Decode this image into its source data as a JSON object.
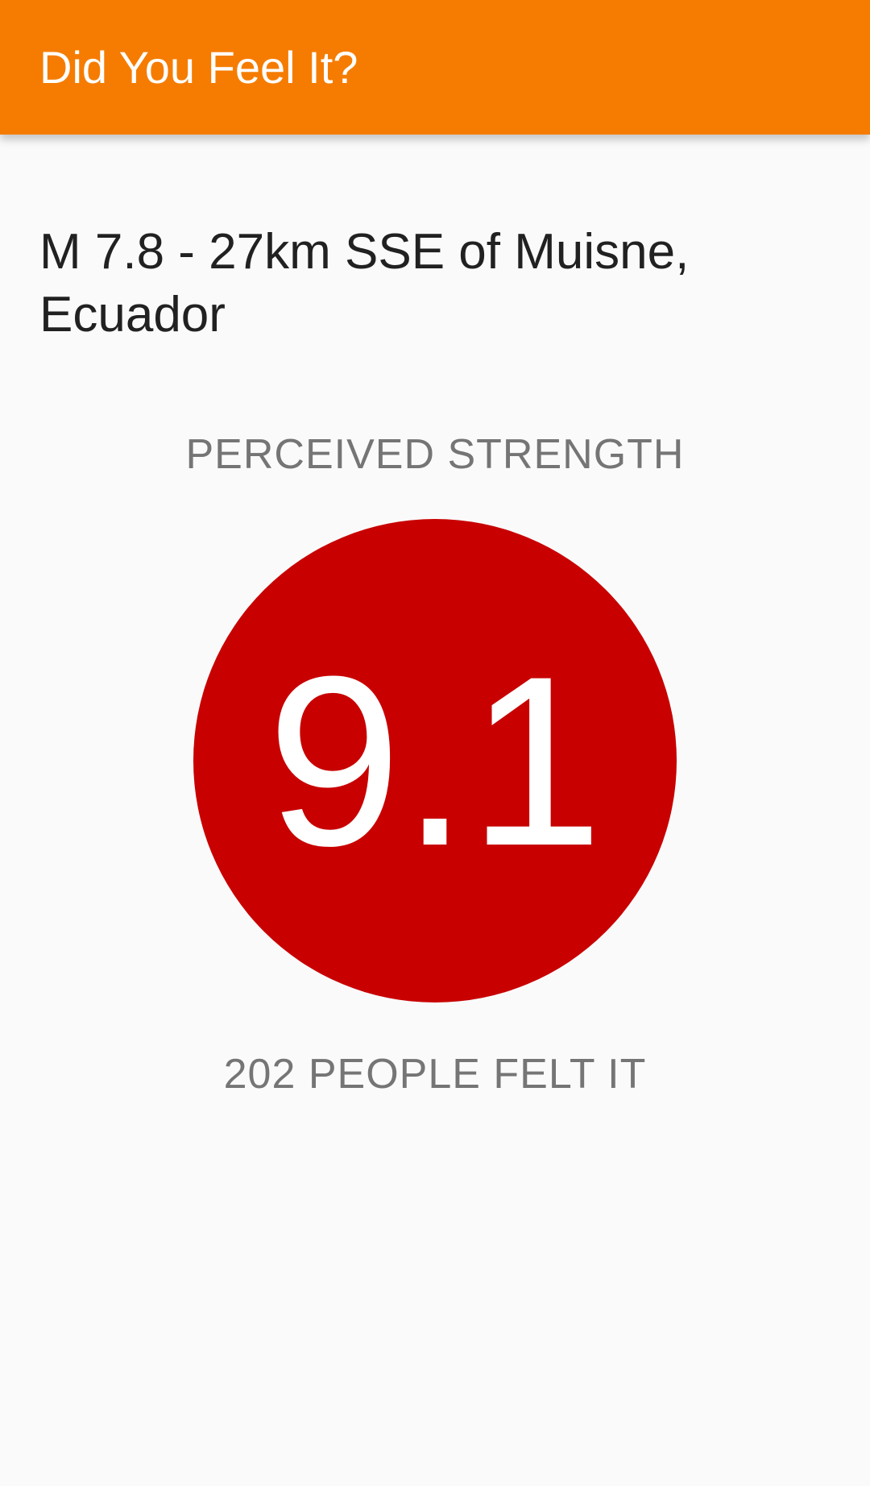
{
  "toolbar": {
    "title": "Did You Feel It?",
    "color": "#f57c00"
  },
  "event": {
    "title": "M 7.8 - 27km SSE of Muisne, Ecuador"
  },
  "strength": {
    "label": "PERCEIVED STRENGTH",
    "value": "9.1",
    "color": "#c80000"
  },
  "felt": {
    "text": "202 PEOPLE FELT IT"
  }
}
